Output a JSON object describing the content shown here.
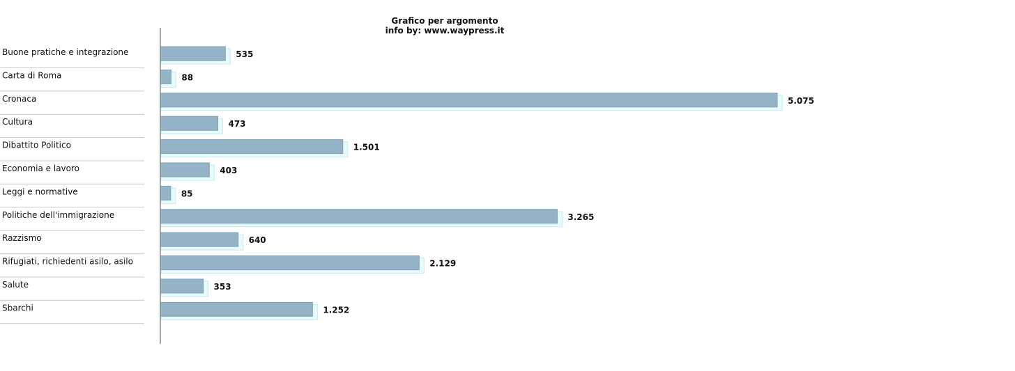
{
  "chart_data": {
    "type": "bar",
    "orientation": "horizontal",
    "title": "Grafico per argomento",
    "subtitle": "info by: www.waypress.it",
    "categories": [
      "Buone pratiche e integrazione",
      "Carta di Roma",
      "Cronaca",
      "Cultura",
      "Dibattito Politico",
      "Economia e lavoro",
      "Leggi e normative",
      "Politiche dell'immigrazione",
      "Razzismo",
      "Rifugiati, richiedenti asilo, asilo",
      "Salute",
      "Sbarchi"
    ],
    "values": [
      535,
      88,
      5075,
      473,
      1501,
      403,
      85,
      3265,
      640,
      2129,
      353,
      1252
    ],
    "value_labels": [
      "535",
      "88",
      "5.075",
      "473",
      "1.501",
      "403",
      "85",
      "3.265",
      "640",
      "2.129",
      "353",
      "1.252"
    ],
    "xlim": [
      0,
      5075
    ],
    "grid": false,
    "colors": {
      "bar": "#94b3c6",
      "bar_edge": "#7f9fb3",
      "shadow": "#e6fbfd",
      "shadow_edge": "#c4ecf2",
      "axis": "#8c8c8c",
      "separator": "#c8c8c8"
    }
  }
}
